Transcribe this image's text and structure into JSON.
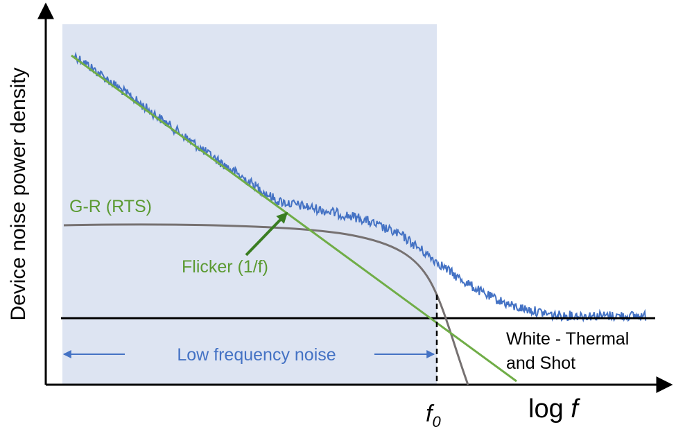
{
  "diagram": {
    "y_axis_label": "Device noise power density",
    "x_axis_label": {
      "prefix": "log",
      "variable": "f"
    },
    "corner_frequency": {
      "base": "f",
      "subscript": "0"
    },
    "curves": {
      "gr": "G-R (RTS)",
      "flicker": "Flicker (1/f)",
      "white": {
        "lines": [
          "White - Thermal",
          "and Shot"
        ]
      }
    },
    "region": "Low frequency noise"
  }
}
